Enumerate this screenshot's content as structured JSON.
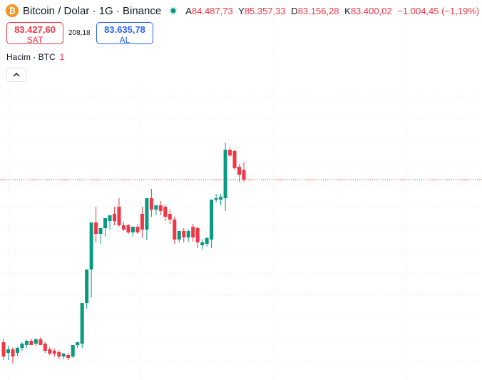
{
  "header": {
    "title": "Bitcoin / Dolar · 1G · Binance",
    "ohlc": [
      {
        "key": "A",
        "value": "84.487,73"
      },
      {
        "key": "Y",
        "value": "85.357,33"
      },
      {
        "key": "D",
        "value": "83.156,28"
      },
      {
        "key": "K",
        "value": "83.400,02"
      }
    ],
    "change": "−1.004,45 (−1,19%)"
  },
  "trade": {
    "sell_price": "83.427,60",
    "sell_label": "SAT",
    "spread": "208,18",
    "buy_price": "83.635,78",
    "buy_label": "AL"
  },
  "volume": {
    "label": "Hacim · BTC",
    "value": "1"
  },
  "chart_data": {
    "type": "candlestick",
    "ylim": [
      60920,
      96360
    ],
    "up_color": "#089981",
    "down_color": "#f23645",
    "open": [
      65160,
      63960,
      64360,
      63960,
      64520,
      64840,
      65320,
      64999,
      65480,
      64999,
      64360,
      64200,
      64040,
      63560,
      63720,
      63560,
      64840,
      64999,
      69560,
      73320,
      78600,
      77320,
      77960,
      78760,
      79560,
      80360,
      78280,
      78280,
      77480,
      78120,
      79560,
      77800,
      81320,
      80040,
      80520,
      80360,
      79560,
      78920,
      76680,
      77640,
      76920,
      78120,
      77960,
      76040,
      76200,
      76680,
      81160,
      81160,
      81320,
      86760,
      86600,
      84840,
      84487.73
    ],
    "high": [
      65560,
      64760,
      64600,
      64600,
      65160,
      65400,
      65560,
      65640,
      65720,
      65160,
      64600,
      64440,
      64280,
      63960,
      63960,
      64840,
      65160,
      69560,
      73320,
      78600,
      80360,
      77640,
      79080,
      79400,
      80360,
      81320,
      78600,
      78440,
      77800,
      78440,
      80360,
      81320,
      82360,
      80360,
      81000,
      80520,
      80040,
      79240,
      77320,
      77960,
      77800,
      78440,
      78120,
      76680,
      77000,
      81160,
      81800,
      81800,
      87560,
      87080,
      86760,
      85160,
      85357.33
    ],
    "low": [
      63160,
      63160,
      62760,
      63640,
      64200,
      64520,
      64840,
      64680,
      64840,
      63960,
      63720,
      63560,
      63240,
      63240,
      63160,
      63400,
      64520,
      64520,
      68920,
      70200,
      76360,
      76200,
      77000,
      77800,
      78280,
      78120,
      77640,
      77320,
      77000,
      77320,
      76840,
      76600,
      79240,
      79400,
      79400,
      78760,
      78440,
      76200,
      76360,
      76360,
      76440,
      76440,
      75720,
      75560,
      75880,
      75720,
      80840,
      80520,
      79880,
      85960,
      84520,
      83160,
      83156.28
    ],
    "close": [
      63560,
      64360,
      63560,
      64520,
      64999,
      65320,
      64840,
      65480,
      64840,
      64200,
      63880,
      63880,
      63560,
      63880,
      63400,
      64840,
      65160,
      69560,
      73320,
      78600,
      77320,
      77960,
      79080,
      79400,
      78760,
      78280,
      77800,
      77480,
      78120,
      77480,
      77800,
      81320,
      80040,
      80520,
      79880,
      79240,
      78920,
      76680,
      77640,
      76920,
      77640,
      76920,
      76360,
      76360,
      76840,
      81160,
      81320,
      81480,
      86760,
      86120,
      84680,
      83960,
      83400.02
    ]
  }
}
